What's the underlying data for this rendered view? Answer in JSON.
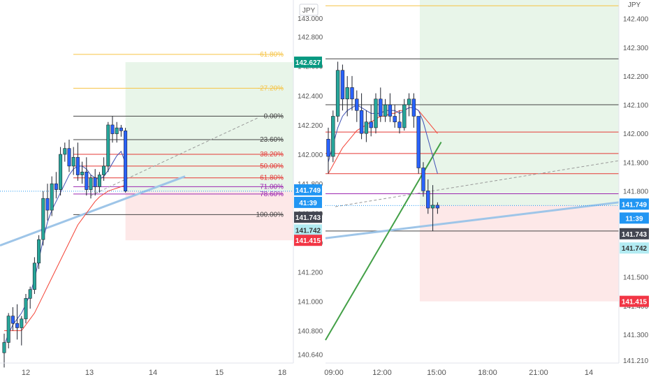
{
  "colors": {
    "up": "#26a69a",
    "down": "#2962ff",
    "wick": "#1e222d",
    "ma_fast": "#3f51b5",
    "ma_slow": "#f44336",
    "fib_gold": "#f6c343",
    "fib_red": "#e53935",
    "fib_black": "#444444",
    "fib_purple": "#9c27b0",
    "trend_blue": "#9ec5e8",
    "target_zone": "#e8f5e9",
    "stop_zone": "#fde8e8",
    "ma_green": "#43a047",
    "badge_green": "#089981",
    "badge_blue": "#2196f3",
    "badge_dark": "#434651",
    "badge_light": "#b2ebf2",
    "badge_red": "#f23645"
  },
  "left_panel": {
    "currency": "JPY",
    "price_ticks": [
      "142.800",
      "142.600",
      "142.400",
      "142.200",
      "142.000",
      "141.800",
      "141.600",
      "141.400",
      "141.200",
      "141.000",
      "140.800",
      "140.640"
    ],
    "top_tick_partial": "143.000",
    "time_ticks": [
      "12",
      "13",
      "14",
      "15",
      "18"
    ],
    "badges": {
      "entry_target": "142.627",
      "last_price": "141.749",
      "countdown": "41:39",
      "bid": "141.743",
      "ask": "141.742",
      "stop": "141.415"
    }
  },
  "right_panel": {
    "currency": "JPY",
    "price_ticks": [
      "142.400",
      "142.300",
      "142.200",
      "142.100",
      "142.000",
      "141.900",
      "141.800",
      "141.700",
      "141.600",
      "141.500",
      "141.400",
      "141.300",
      "141.210"
    ],
    "time_ticks": [
      "09:00",
      "12:00",
      "15:00",
      "18:00",
      "21:00",
      "14"
    ],
    "badges": {
      "last_price": "141.749",
      "countdown": "11:39",
      "bid": "141.743",
      "ask": "141.742",
      "stop": "141.415"
    }
  },
  "chart_data": [
    {
      "type": "candlestick",
      "panel": "left",
      "symbol_currency": "JPY",
      "ylim": [
        140.58,
        143.05
      ],
      "x_ticks": [
        "12",
        "13",
        "14",
        "15",
        "18"
      ],
      "candles": [
        {
          "o": 140.65,
          "h": 140.78,
          "l": 140.55,
          "c": 140.72
        },
        {
          "o": 140.72,
          "h": 140.92,
          "l": 140.68,
          "c": 140.9
        },
        {
          "o": 140.9,
          "h": 140.96,
          "l": 140.8,
          "c": 140.85
        },
        {
          "o": 140.85,
          "h": 140.98,
          "l": 140.74,
          "c": 140.82
        },
        {
          "o": 140.82,
          "h": 140.9,
          "l": 140.7,
          "c": 140.88
        },
        {
          "o": 140.88,
          "h": 141.05,
          "l": 140.85,
          "c": 141.02
        },
        {
          "o": 141.02,
          "h": 141.1,
          "l": 140.95,
          "c": 141.08
        },
        {
          "o": 141.08,
          "h": 141.3,
          "l": 141.05,
          "c": 141.26
        },
        {
          "o": 141.26,
          "h": 141.45,
          "l": 141.22,
          "c": 141.42
        },
        {
          "o": 141.42,
          "h": 141.75,
          "l": 141.38,
          "c": 141.7
        },
        {
          "o": 141.7,
          "h": 141.8,
          "l": 141.55,
          "c": 141.62
        },
        {
          "o": 141.62,
          "h": 141.85,
          "l": 141.58,
          "c": 141.8
        },
        {
          "o": 141.8,
          "h": 141.88,
          "l": 141.7,
          "c": 141.76
        },
        {
          "o": 141.76,
          "h": 142.05,
          "l": 141.72,
          "c": 142.0
        },
        {
          "o": 142.0,
          "h": 142.08,
          "l": 141.95,
          "c": 142.04
        },
        {
          "o": 142.04,
          "h": 142.1,
          "l": 141.88,
          "c": 141.92
        },
        {
          "o": 141.92,
          "h": 142.05,
          "l": 141.86,
          "c": 141.98
        },
        {
          "o": 141.98,
          "h": 142.08,
          "l": 141.82,
          "c": 141.86
        },
        {
          "o": 141.86,
          "h": 141.95,
          "l": 141.8,
          "c": 141.88
        },
        {
          "o": 141.88,
          "h": 141.98,
          "l": 141.72,
          "c": 141.76
        },
        {
          "o": 141.76,
          "h": 141.86,
          "l": 141.7,
          "c": 141.84
        },
        {
          "o": 141.84,
          "h": 141.9,
          "l": 141.72,
          "c": 141.78
        },
        {
          "o": 141.78,
          "h": 141.88,
          "l": 141.74,
          "c": 141.86
        },
        {
          "o": 141.86,
          "h": 141.98,
          "l": 141.82,
          "c": 141.92
        },
        {
          "o": 141.92,
          "h": 142.22,
          "l": 141.88,
          "c": 142.2
        },
        {
          "o": 142.2,
          "h": 142.26,
          "l": 142.08,
          "c": 142.14
        },
        {
          "o": 142.14,
          "h": 142.22,
          "l": 142.08,
          "c": 142.18
        },
        {
          "o": 142.18,
          "h": 142.2,
          "l": 142.12,
          "c": 142.16
        },
        {
          "o": 142.16,
          "h": 142.18,
          "l": 141.74,
          "c": 141.75
        }
      ],
      "ma_fast": [
        140.7,
        140.78,
        140.84,
        140.88,
        140.92,
        140.98,
        141.05,
        141.15,
        141.28,
        141.42,
        141.54,
        141.62,
        141.68,
        141.74,
        141.8,
        141.86,
        141.9,
        141.92,
        141.92,
        141.9,
        141.86,
        141.84,
        141.83,
        141.85,
        141.89,
        141.94,
        141.99,
        142.02,
        141.94
      ],
      "ma_slow": [
        140.8,
        140.8,
        140.8,
        140.8,
        140.8,
        140.84,
        140.88,
        140.92,
        140.98,
        141.04,
        141.1,
        141.16,
        141.22,
        141.28,
        141.34,
        141.4,
        141.46,
        141.52,
        141.56,
        141.6,
        141.64,
        141.68,
        141.71,
        141.73,
        141.75,
        141.76,
        141.77,
        141.78,
        141.79
      ],
      "fib_levels": [
        {
          "label": "-61.80%",
          "price": 142.68
        },
        {
          "label": "-27.20%",
          "price": 142.45
        },
        {
          "label": "0.00%",
          "price": 142.26
        },
        {
          "label": "23.60%",
          "price": 142.1
        },
        {
          "label": "38.20%",
          "price": 142.0
        },
        {
          "label": "50.00%",
          "price": 141.92
        },
        {
          "label": "61.80%",
          "price": 141.84
        },
        {
          "label": "71.00%",
          "price": 141.78
        },
        {
          "label": "78.60%",
          "price": 141.73
        },
        {
          "label": "100.00%",
          "price": 141.59
        }
      ],
      "position": {
        "entry": 141.749,
        "target": 142.627,
        "stop": 141.415
      },
      "bid_ask": {
        "bid": 141.743,
        "ask": 141.742
      }
    },
    {
      "type": "candlestick",
      "panel": "right",
      "symbol_currency": "JPY",
      "ylim": [
        141.2,
        142.465
      ],
      "x_ticks": [
        "09:00",
        "12:00",
        "15:00",
        "18:00",
        "21:00",
        "14"
      ],
      "candles": [
        {
          "o": 141.98,
          "h": 142.02,
          "l": 141.86,
          "c": 141.92
        },
        {
          "o": 141.92,
          "h": 142.08,
          "l": 141.9,
          "c": 142.06
        },
        {
          "o": 142.06,
          "h": 142.25,
          "l": 142.04,
          "c": 142.22
        },
        {
          "o": 142.22,
          "h": 142.24,
          "l": 142.08,
          "c": 142.12
        },
        {
          "o": 142.12,
          "h": 142.2,
          "l": 142.06,
          "c": 142.16
        },
        {
          "o": 142.16,
          "h": 142.2,
          "l": 142.08,
          "c": 142.12
        },
        {
          "o": 142.12,
          "h": 142.15,
          "l": 142.04,
          "c": 142.08
        },
        {
          "o": 142.08,
          "h": 142.14,
          "l": 141.98,
          "c": 142.0
        },
        {
          "o": 142.0,
          "h": 142.08,
          "l": 141.97,
          "c": 142.04
        },
        {
          "o": 142.04,
          "h": 142.1,
          "l": 141.99,
          "c": 142.02
        },
        {
          "o": 142.02,
          "h": 142.14,
          "l": 142.0,
          "c": 142.12
        },
        {
          "o": 142.12,
          "h": 142.16,
          "l": 142.04,
          "c": 142.06
        },
        {
          "o": 142.06,
          "h": 142.12,
          "l": 142.04,
          "c": 142.1
        },
        {
          "o": 142.1,
          "h": 142.14,
          "l": 142.04,
          "c": 142.06
        },
        {
          "o": 142.06,
          "h": 142.1,
          "l": 142.02,
          "c": 142.04
        },
        {
          "o": 142.04,
          "h": 142.08,
          "l": 142.0,
          "c": 142.02
        },
        {
          "o": 142.02,
          "h": 142.12,
          "l": 142.01,
          "c": 142.1
        },
        {
          "o": 142.1,
          "h": 142.14,
          "l": 142.06,
          "c": 142.12
        },
        {
          "o": 142.12,
          "h": 142.14,
          "l": 142.02,
          "c": 142.06
        },
        {
          "o": 142.06,
          "h": 142.06,
          "l": 141.86,
          "c": 141.88
        },
        {
          "o": 141.88,
          "h": 141.9,
          "l": 141.78,
          "c": 141.8
        },
        {
          "o": 141.8,
          "h": 141.84,
          "l": 141.72,
          "c": 141.74
        },
        {
          "o": 141.74,
          "h": 141.82,
          "l": 141.66,
          "c": 141.75
        },
        {
          "o": 141.75,
          "h": 141.76,
          "l": 141.72,
          "c": 141.74
        }
      ],
      "ma_fast": [
        141.9,
        141.96,
        142.02,
        142.06,
        142.08,
        142.09,
        142.1,
        142.09,
        142.08,
        142.07,
        142.07,
        142.07,
        142.08,
        142.08,
        142.08,
        142.07,
        142.08,
        142.09,
        142.09,
        142.08,
        142.04,
        141.98,
        141.92,
        141.86
      ],
      "ma_slow": [
        141.86,
        141.89,
        141.92,
        141.95,
        141.97,
        141.99,
        142.01,
        142.02,
        142.03,
        142.04,
        142.05,
        142.06,
        142.06,
        142.07,
        142.07,
        142.08,
        142.08,
        142.09,
        142.09,
        142.08,
        142.06,
        142.04,
        142.02,
        142.0
      ],
      "ma_green": [
        141.28,
        141.31,
        141.34,
        141.37,
        141.4,
        141.43,
        141.46,
        141.49,
        141.52,
        141.55,
        141.58,
        141.61,
        141.64,
        141.67,
        141.7,
        141.73,
        141.76,
        141.79,
        141.82,
        141.85,
        141.88,
        141.91,
        141.94,
        141.97
      ],
      "levels": [
        {
          "price": 142.445,
          "color": "gold"
        },
        {
          "price": 142.26,
          "color": "black"
        },
        {
          "price": 142.1,
          "color": "black"
        },
        {
          "price": 142.005,
          "color": "red"
        },
        {
          "price": 141.93,
          "color": "red"
        },
        {
          "price": 141.86,
          "color": "red"
        },
        {
          "price": 141.79,
          "color": "purple"
        },
        {
          "price": 141.66,
          "color": "black"
        }
      ],
      "position": {
        "entry": 141.749,
        "stop": 141.415
      },
      "bid_ask": {
        "bid": 141.743,
        "ask": 141.742
      }
    }
  ]
}
